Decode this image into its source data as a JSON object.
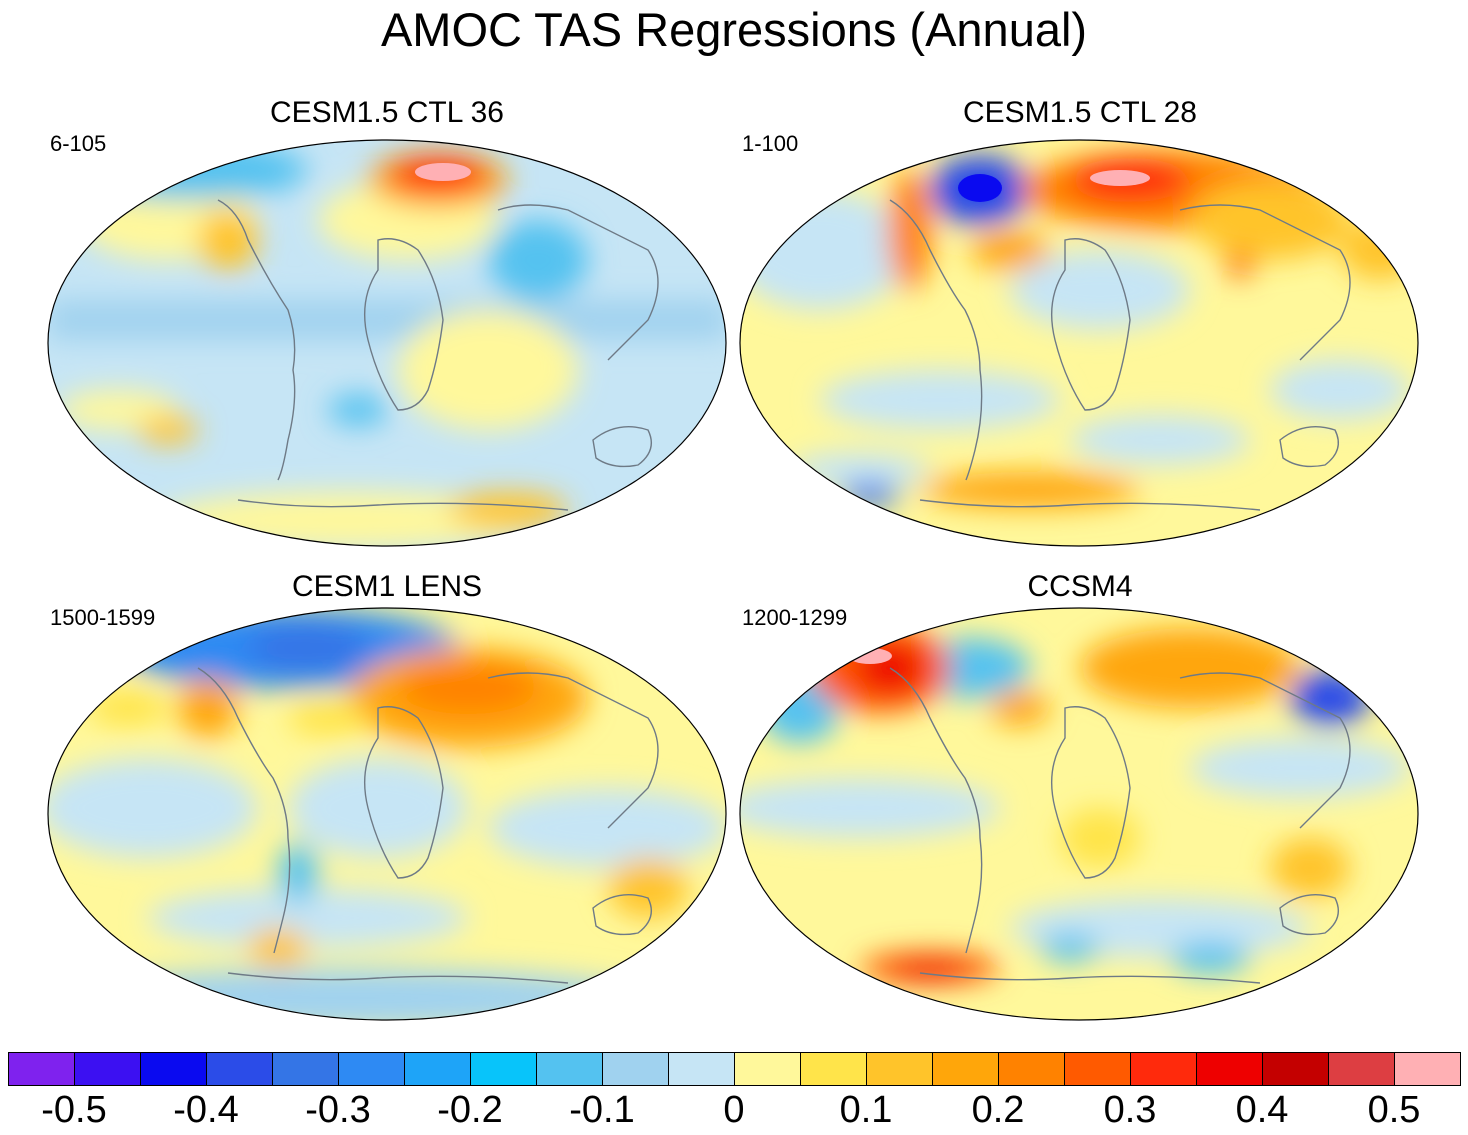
{
  "title": "AMOC TAS Regressions (Annual)",
  "panels": [
    {
      "title": "CESM1.5 CTL 36",
      "years": "6-105"
    },
    {
      "title": "CESM1.5 CTL 28",
      "years": "1-100"
    },
    {
      "title": "CESM1 LENS",
      "years": "1500-1599"
    },
    {
      "title": "CCSM4",
      "years": "1200-1299"
    }
  ],
  "colorbar": {
    "colors": [
      "#7f22ee",
      "#3c10f2",
      "#0a0af0",
      "#2b4ce8",
      "#3475e6",
      "#2e8af3",
      "#1ea4f8",
      "#08c4fa",
      "#54c2f0",
      "#a0d2ef",
      "#c6e5f5",
      "#fff89b",
      "#ffe44a",
      "#ffc42a",
      "#ffa60a",
      "#ff8200",
      "#ff5a00",
      "#ff2a0c",
      "#ee0000",
      "#c40000",
      "#dd3e42",
      "#ffb0b4"
    ],
    "labels": [
      "-0.5",
      "-0.4",
      "-0.3",
      "-0.2",
      "-0.1",
      "0",
      "0.1",
      "0.2",
      "0.3",
      "0.4",
      "0.5"
    ]
  }
}
